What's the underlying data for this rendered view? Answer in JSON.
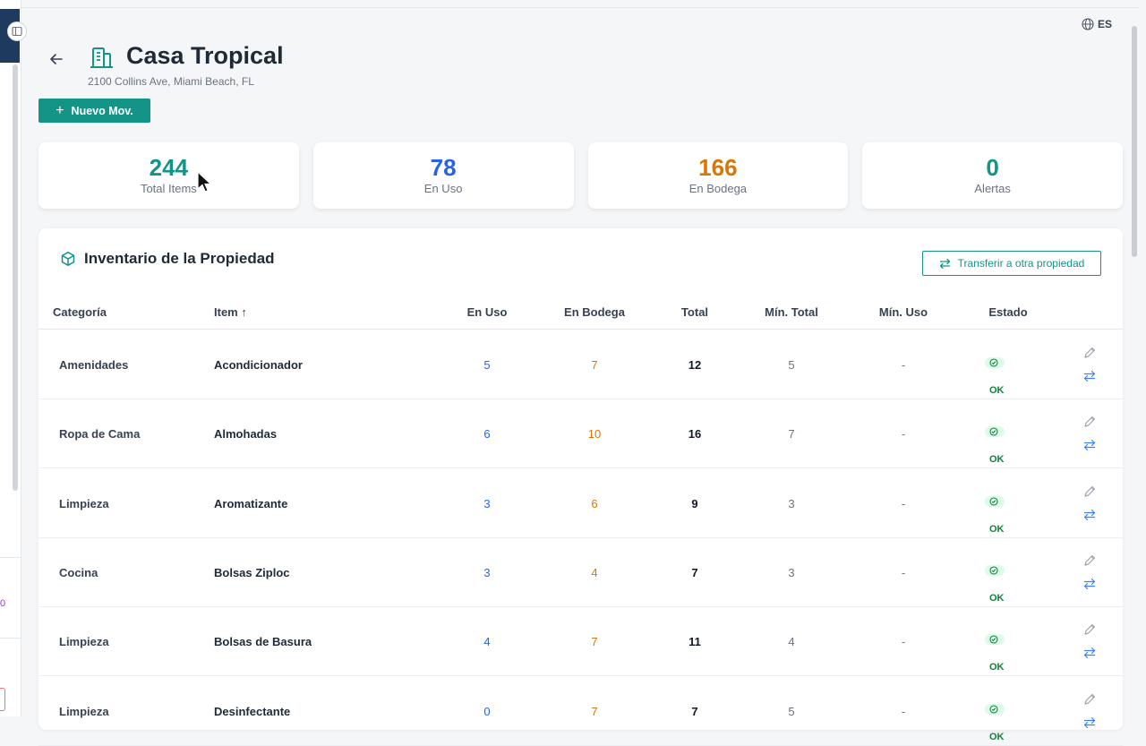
{
  "header": {
    "lang": "ES",
    "title": "Casa Tropical",
    "subtitle": "2100 Collins Ave, Miami Beach, FL",
    "new_button": "Nuevo Mov."
  },
  "stats": [
    {
      "value": "244",
      "label": "Total Items",
      "color": "#139487"
    },
    {
      "value": "78",
      "label": "En Uso",
      "color": "#2563eb"
    },
    {
      "value": "166",
      "label": "En Bodega",
      "color": "#d97706"
    },
    {
      "value": "0",
      "label": "Alertas",
      "color": "#139487"
    }
  ],
  "inventory": {
    "title": "Inventario de la Propiedad",
    "transfer_button": "Transferir a otra propiedad",
    "columns": {
      "categoria": "Categoría",
      "item": "Item ↑",
      "en_uso": "En Uso",
      "en_bodega": "En Bodega",
      "total": "Total",
      "min_total": "Mín. Total",
      "min_uso": "Mín. Uso",
      "estado": "Estado"
    },
    "rows": [
      {
        "categoria": "Amenidades",
        "item": "Acondicionador",
        "en_uso": "5",
        "en_bodega": "7",
        "total": "12",
        "min_total": "5",
        "min_uso": "-",
        "estado": "OK"
      },
      {
        "categoria": "Ropa de Cama",
        "item": "Almohadas",
        "en_uso": "6",
        "en_bodega": "10",
        "total": "16",
        "min_total": "7",
        "min_uso": "-",
        "estado": "OK"
      },
      {
        "categoria": "Limpieza",
        "item": "Aromatizante",
        "en_uso": "3",
        "en_bodega": "6",
        "total": "9",
        "min_total": "3",
        "min_uso": "-",
        "estado": "OK"
      },
      {
        "categoria": "Cocina",
        "item": "Bolsas Ziploc",
        "en_uso": "3",
        "en_bodega": "4",
        "total": "7",
        "min_total": "3",
        "min_uso": "-",
        "estado": "OK"
      },
      {
        "categoria": "Limpieza",
        "item": "Bolsas de Basura",
        "en_uso": "4",
        "en_bodega": "7",
        "total": "11",
        "min_total": "4",
        "min_uso": "-",
        "estado": "OK"
      },
      {
        "categoria": "Limpieza",
        "item": "Desinfectante",
        "en_uso": "0",
        "en_bodega": "7",
        "total": "7",
        "min_total": "5",
        "min_uso": "-",
        "estado": "OK"
      }
    ]
  },
  "sidebar_fragment": {
    "partial_text": "0"
  }
}
